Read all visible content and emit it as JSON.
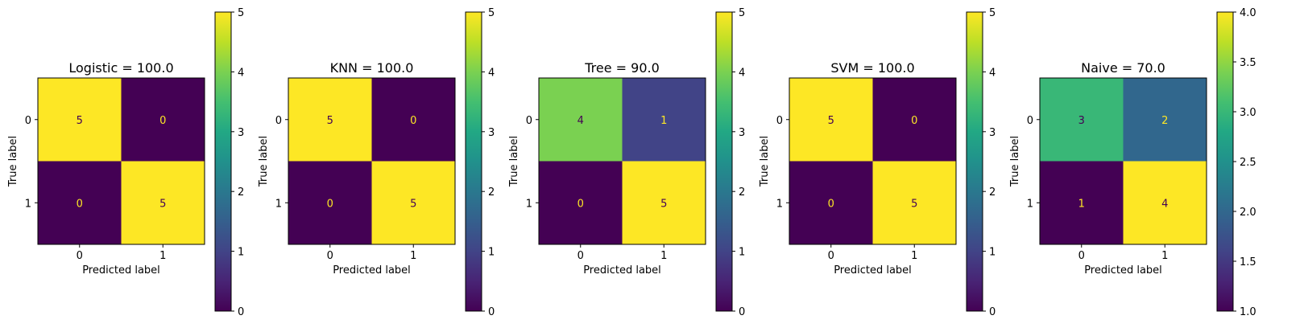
{
  "chart_data": [
    {
      "type": "heatmap",
      "title": "Logistic = 100.0",
      "xlabel": "Predicted label",
      "ylabel": "True label",
      "x_ticks": [
        "0",
        "1"
      ],
      "y_ticks": [
        "0",
        "1"
      ],
      "matrix": [
        [
          5,
          0
        ],
        [
          0,
          5
        ]
      ],
      "colormap": "viridis",
      "colorbar_range": [
        0,
        5
      ],
      "colorbar_ticks": [
        "0",
        "1",
        "2",
        "3",
        "4",
        "5"
      ]
    },
    {
      "type": "heatmap",
      "title": "KNN = 100.0",
      "xlabel": "Predicted label",
      "ylabel": "True label",
      "x_ticks": [
        "0",
        "1"
      ],
      "y_ticks": [
        "0",
        "1"
      ],
      "matrix": [
        [
          5,
          0
        ],
        [
          0,
          5
        ]
      ],
      "colormap": "viridis",
      "colorbar_range": [
        0,
        5
      ],
      "colorbar_ticks": [
        "0",
        "1",
        "2",
        "3",
        "4",
        "5"
      ]
    },
    {
      "type": "heatmap",
      "title": "Tree = 90.0",
      "xlabel": "Predicted label",
      "ylabel": "True label",
      "x_ticks": [
        "0",
        "1"
      ],
      "y_ticks": [
        "0",
        "1"
      ],
      "matrix": [
        [
          4,
          1
        ],
        [
          0,
          5
        ]
      ],
      "colormap": "viridis",
      "colorbar_range": [
        0,
        5
      ],
      "colorbar_ticks": [
        "0",
        "1",
        "2",
        "3",
        "4",
        "5"
      ]
    },
    {
      "type": "heatmap",
      "title": "SVM = 100.0",
      "xlabel": "Predicted label",
      "ylabel": "True label",
      "x_ticks": [
        "0",
        "1"
      ],
      "y_ticks": [
        "0",
        "1"
      ],
      "matrix": [
        [
          5,
          0
        ],
        [
          0,
          5
        ]
      ],
      "colormap": "viridis",
      "colorbar_range": [
        0,
        5
      ],
      "colorbar_ticks": [
        "0",
        "1",
        "2",
        "3",
        "4",
        "5"
      ]
    },
    {
      "type": "heatmap",
      "title": "Naive = 70.0",
      "xlabel": "Predicted label",
      "ylabel": "True label",
      "x_ticks": [
        "0",
        "1"
      ],
      "y_ticks": [
        "0",
        "1"
      ],
      "matrix": [
        [
          3,
          2
        ],
        [
          1,
          4
        ]
      ],
      "colormap": "viridis",
      "colorbar_range": [
        1,
        4
      ],
      "colorbar_ticks": [
        "1.0",
        "1.5",
        "2.0",
        "2.5",
        "3.0",
        "3.5",
        "4.0"
      ]
    }
  ]
}
